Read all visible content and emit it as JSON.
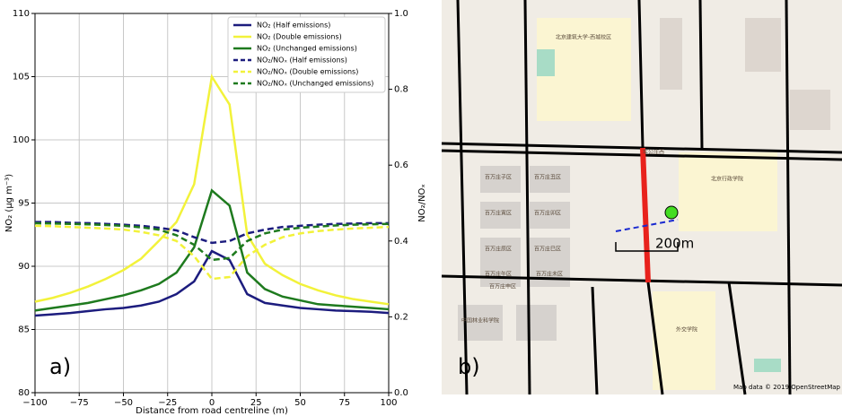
{
  "chart_data": {
    "type": "line",
    "panel_label": "a)",
    "x_label": "Distance from road centreline (m)",
    "y_label": "NO₂ (μg m⁻³)",
    "y2_label": "NO₂/NOₓ",
    "x": [
      -100,
      -90,
      -80,
      -70,
      -60,
      -50,
      -40,
      -30,
      -20,
      -10,
      0,
      10,
      20,
      30,
      40,
      50,
      60,
      70,
      80,
      90,
      100
    ],
    "xlim": [
      -100,
      100
    ],
    "xticks": [
      {
        "value": -100,
        "label": "−100"
      },
      {
        "value": -75,
        "label": "−75"
      },
      {
        "value": -50,
        "label": "−50"
      },
      {
        "value": -25,
        "label": "−25"
      },
      0,
      25,
      50,
      75,
      100
    ],
    "ylim": [
      80,
      110
    ],
    "yticks": [
      80,
      85,
      90,
      95,
      100,
      105,
      110
    ],
    "y2lim": [
      0,
      1
    ],
    "y2ticks": [
      {
        "value": 0,
        "label": "0.0"
      },
      0.2,
      0.4,
      0.6,
      0.8,
      {
        "value": 1,
        "label": "1.0"
      }
    ],
    "grid": true,
    "legend": "upper right",
    "series": [
      {
        "name": "NO₂ (Half emissions)",
        "color": "#1c1c7e",
        "linestyle": "solid",
        "values": [
          86.1,
          86.2,
          86.3,
          86.45,
          86.6,
          86.7,
          86.9,
          87.2,
          87.8,
          88.8,
          91.2,
          90.5,
          87.8,
          87.1,
          86.9,
          86.7,
          86.6,
          86.5,
          86.45,
          86.4,
          86.3
        ]
      },
      {
        "name": "NO₂ (Double emissions)",
        "color": "#f2f23a",
        "linestyle": "solid",
        "values": [
          87.2,
          87.5,
          87.9,
          88.4,
          89.0,
          89.7,
          90.6,
          92.0,
          93.5,
          96.5,
          105,
          102.8,
          92.5,
          90.2,
          89.3,
          88.6,
          88.1,
          87.7,
          87.4,
          87.2,
          87.0
        ]
      },
      {
        "name": "NO₂ (Unchanged emissions)",
        "color": "#1e7a1e",
        "linestyle": "solid",
        "values": [
          86.5,
          86.7,
          86.9,
          87.1,
          87.4,
          87.7,
          88.1,
          88.6,
          89.5,
          91.5,
          96,
          94.8,
          89.5,
          88.2,
          87.6,
          87.3,
          87.0,
          86.9,
          86.8,
          86.7,
          86.6
        ]
      },
      {
        "name": "NO₂/NOₓ (Half emissions)",
        "color": "#1c1c7e",
        "linestyle": "dashed",
        "axis": "y2",
        "values": [
          0.45,
          0.45,
          0.448,
          0.447,
          0.445,
          0.443,
          0.44,
          0.435,
          0.428,
          0.41,
          0.395,
          0.4,
          0.42,
          0.43,
          0.437,
          0.44,
          0.443,
          0.445,
          0.446,
          0.447,
          0.447
        ]
      },
      {
        "name": "NO₂/NOₓ (Double emissions)",
        "color": "#f2f23a",
        "linestyle": "dashed",
        "axis": "y2",
        "values": [
          0.44,
          0.439,
          0.437,
          0.435,
          0.433,
          0.43,
          0.424,
          0.415,
          0.4,
          0.36,
          0.3,
          0.305,
          0.36,
          0.39,
          0.41,
          0.42,
          0.426,
          0.43,
          0.433,
          0.435,
          0.437
        ]
      },
      {
        "name": "NO₂/NOₓ (Unchanged emissions)",
        "color": "#1e7a1e",
        "linestyle": "dashed",
        "axis": "y2",
        "values": [
          0.447,
          0.446,
          0.445,
          0.444,
          0.442,
          0.44,
          0.436,
          0.43,
          0.415,
          0.39,
          0.35,
          0.355,
          0.4,
          0.42,
          0.43,
          0.435,
          0.438,
          0.441,
          0.443,
          0.444,
          0.445
        ]
      }
    ]
  },
  "map": {
    "panel_label": "b)",
    "scale_label": "200m",
    "attribution": "Map data © 2019 OpenStreetMap",
    "places": [
      "北京建筑大学-西城校区",
      "北京行政学院",
      "车公庄西",
      "百万庄子区",
      "百万庄丑区",
      "百万庄寅区",
      "百万庄卯区",
      "百万庄辰区",
      "百万庄巳区",
      "百万庄午区",
      "百万庄未区",
      "百万庄申区",
      "中国林业科学院",
      "外交学院"
    ]
  }
}
